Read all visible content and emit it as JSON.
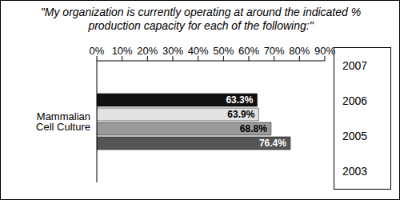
{
  "chart_data": {
    "type": "bar",
    "title": "\"My organization is currently operating at around the indicated % production capacity for each of the following:\"",
    "orientation": "horizontal",
    "categories": [
      "Mammalian Cell Culture"
    ],
    "series": [
      {
        "name": "2007",
        "color": "#111111",
        "values": [
          63.3
        ],
        "value_labels": [
          "63.3%"
        ]
      },
      {
        "name": "2006",
        "color": "#e2e2e2",
        "values": [
          63.9
        ],
        "value_labels": [
          "63.9%"
        ]
      },
      {
        "name": "2005",
        "color": "#9a9a9a",
        "values": [
          68.8
        ],
        "value_labels": [
          "68.8%"
        ]
      },
      {
        "name": "2003",
        "color": "#555555",
        "values": [
          76.4
        ],
        "value_labels": [
          "76.4%"
        ]
      }
    ],
    "xlim": [
      0,
      90
    ],
    "xticks": [
      {
        "value": 0,
        "label": "0%"
      },
      {
        "value": 10,
        "label": "10%"
      },
      {
        "value": 20,
        "label": "20%"
      },
      {
        "value": 30,
        "label": "30%"
      },
      {
        "value": 40,
        "label": "40%"
      },
      {
        "value": 50,
        "label": "50%"
      },
      {
        "value": 60,
        "label": "60%"
      },
      {
        "value": 70,
        "label": "70%"
      },
      {
        "value": 80,
        "label": "80%"
      },
      {
        "value": 90,
        "label": "90%"
      }
    ],
    "data_labels": true,
    "legend": "right",
    "grid": false
  }
}
